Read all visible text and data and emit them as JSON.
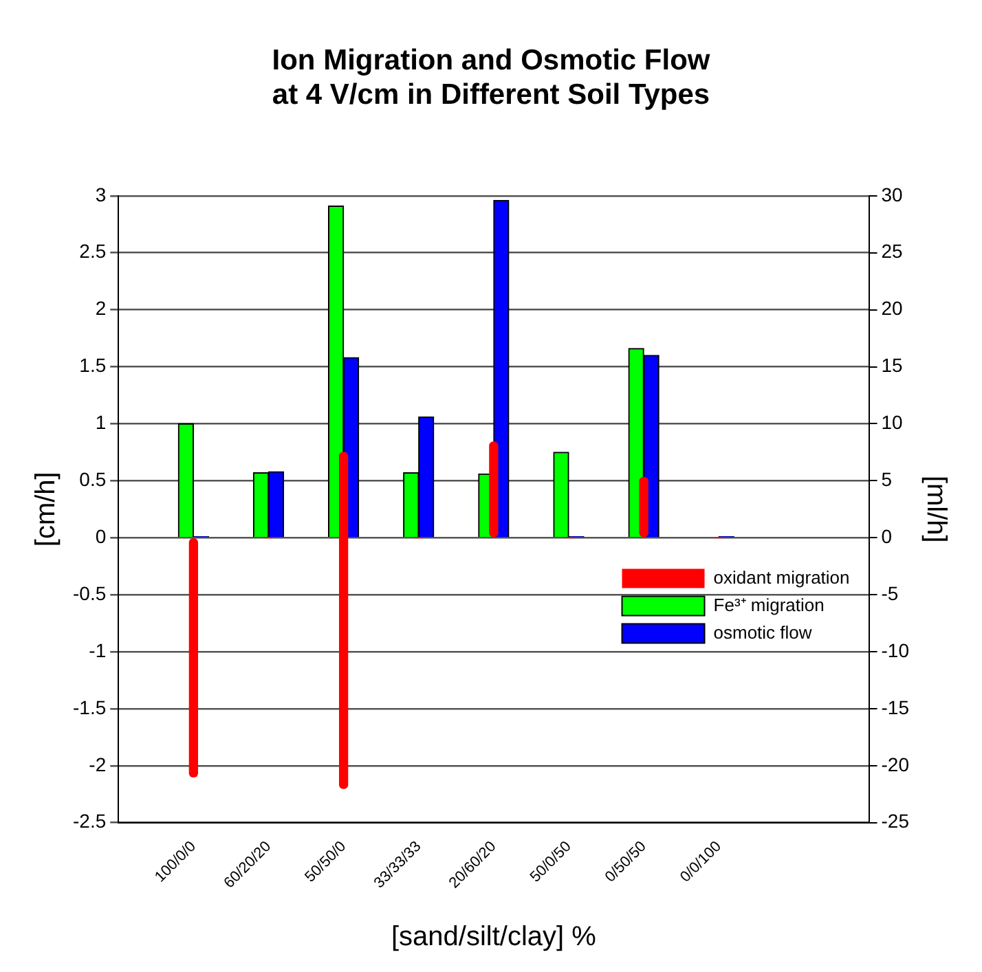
{
  "chart_data": {
    "type": "bar",
    "title": "Ion Migration and Osmotic Flow\nat 4 V/cm in Different Soil Types",
    "xlabel": "[sand/silt/clay] %",
    "ylabel": "[cm/h]",
    "y2label": "[ml/h]",
    "categories": [
      null,
      "100/0/0",
      "60/20/20",
      "50/50/0",
      "33/33/33",
      "20/60/20",
      "50/0/50",
      "0/50/50",
      "0/0/100",
      null,
      null
    ],
    "series": [
      {
        "name": "oxidant migration",
        "type": "bar",
        "color": "#ff0000",
        "values": [
          null,
          -2.1,
          0,
          2.95,
          0,
          0.84,
          0,
          0.53,
          0,
          null,
          null
        ],
        "base": [
          null,
          0,
          0,
          -2.2,
          0,
          0,
          0,
          0,
          0,
          null,
          null
        ]
      },
      {
        "name": "Fe³⁺ migration",
        "type": "bar",
        "color": "#00ff00",
        "values": [
          null,
          1.0,
          0.57,
          2.91,
          0.57,
          0.56,
          0.75,
          1.66,
          0,
          null,
          null
        ]
      },
      {
        "name": "osmotic flow",
        "type": "bar",
        "color": "#0000ff",
        "axis": "y2",
        "values": [
          null,
          0.1,
          5.8,
          15.8,
          10.6,
          29.6,
          0.1,
          16.0,
          0.1,
          null,
          null
        ]
      }
    ],
    "ylim": [
      -2.5,
      3
    ],
    "yticks": [
      -2.5,
      -2,
      -1.5,
      -1,
      -0.5,
      0,
      0.5,
      1,
      1.5,
      2,
      2.5,
      3
    ],
    "y2lim": [
      -25,
      30
    ],
    "y2ticks": [
      -25,
      -20,
      -15,
      -10,
      -5,
      0,
      5,
      10,
      15,
      20,
      25,
      30
    ],
    "grid": "y",
    "legend": "right"
  }
}
